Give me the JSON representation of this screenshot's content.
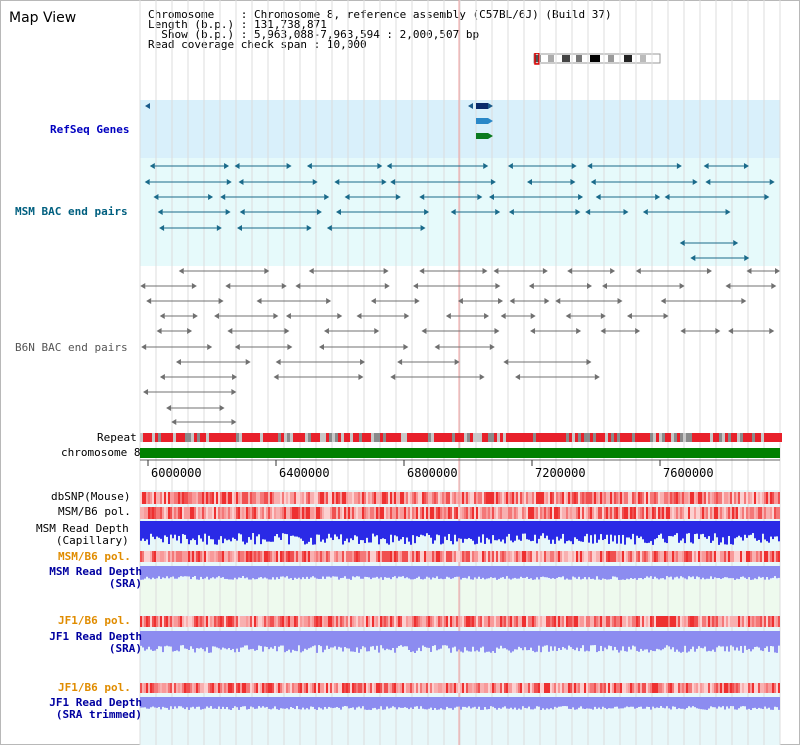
{
  "title": "Map View",
  "info": {
    "chromosome_label": "Chromosome",
    "chromosome_value": "Chromosome 8, reference assembly (C57BL/6J) (Build 37)",
    "length_label": "Length (b.p.)",
    "length_value": "131,738,871",
    "show_label": "Show (b.p.)",
    "show_value": "5,963,088-7,963,594 : 2,000,507 bp",
    "coverage_label": "Read coverage check span",
    "coverage_value": "10,000"
  },
  "tracks": {
    "refseq": "RefSeq Genes",
    "msm_bac": "MSM BAC end pairs",
    "b6n_bac": "B6N BAC end pairs",
    "repeat": "Repeat",
    "chromosome": "chromosome 8",
    "dbsnp": "dbSNP(Mouse)",
    "msm_b6_pol": "MSM/B6 pol.",
    "msm_read_depth_cap_1": "MSM Read Depth",
    "msm_read_depth_cap_2": "(Capillary)",
    "msm_b6_pol_2": "MSM/B6 pol.",
    "msm_read_depth_sra_1": "MSM Read Depth",
    "msm_read_depth_sra_2": "(SRA)",
    "jf1_b6_pol": "JF1/B6 pol.",
    "jf1_read_depth_1": "JF1 Read Depth",
    "jf1_read_depth_2": "(SRA)",
    "jf1_b6_pol_2": "JF1/B6 pol.",
    "jf1_read_depth_trim_1": "JF1 Read Depth",
    "jf1_read_depth_trim_2": "(SRA trimmed)"
  },
  "axis_ticks": [
    "6000000",
    "6400000",
    "6800000",
    "7200000",
    "7600000"
  ],
  "colors": {
    "refseq_bg": "#d9f0fb",
    "bac_bg": "#e6fafb",
    "repeat_red": "#e8202a",
    "repeat_grey": "#8a8a8a",
    "chromosome_green": "#008000",
    "depth_blue": "#2a2ae6",
    "depth_light": "#8c8cf0",
    "pol_red": "#f03a3a"
  }
}
